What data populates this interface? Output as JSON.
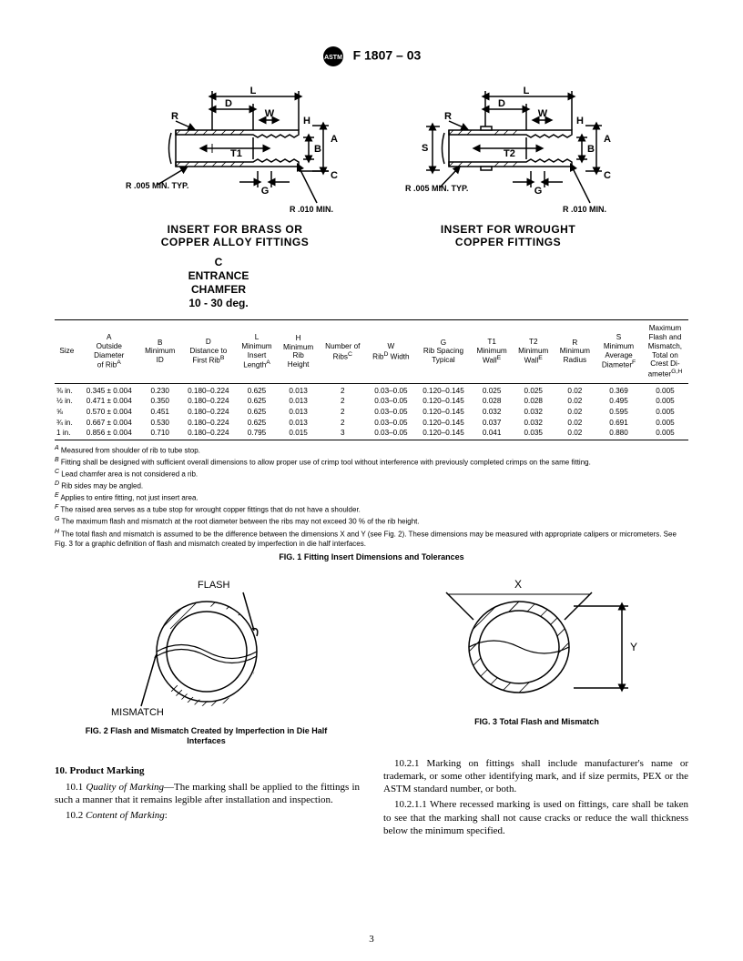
{
  "header": {
    "standard": "F 1807 – 03"
  },
  "diagrams": {
    "left": {
      "caption_l1": "INSERT FOR BRASS OR",
      "caption_l2": "COPPER ALLOY FITTINGS",
      "labels": {
        "L": "L",
        "D": "D",
        "W": "W",
        "R": "R",
        "H": "H",
        "A": "A",
        "B": "B",
        "C": "C",
        "T": "T1",
        "G": "G"
      },
      "note_r": "R .005 MIN. TYP.",
      "note_rmin": "R .010 MIN."
    },
    "right": {
      "caption_l1": "INSERT FOR WROUGHT",
      "caption_l2": "COPPER FITTINGS",
      "labels": {
        "L": "L",
        "D": "D",
        "W": "W",
        "R": "R",
        "H": "H",
        "A": "A",
        "B": "B",
        "C": "C",
        "T": "T2",
        "G": "G",
        "S": "S"
      },
      "note_r": "R .005 MIN. TYP.",
      "note_rmin": "R .010 MIN."
    },
    "chamfer": {
      "c": "C",
      "l1": "ENTRANCE",
      "l2": "CHAMFER",
      "l3": "10 - 30 deg."
    }
  },
  "table": {
    "columns": [
      "Size",
      "A\nOutside\nDiameter\nof Rib<sup>A</sup>",
      "B\nMinimum\nID",
      "D\nDistance to\nFirst Rib<sup>B</sup>",
      "L\nMinimum\nInsert\nLength<sup>A</sup>",
      "H\nMinimum\nRib\nHeight",
      "Number of\nRibs<sup>C</sup>",
      "W\nRib<sup>D</sup> Width",
      "G\nRib Spacing\nTypical",
      "T1\nMinimum\nWall<sup>E</sup>",
      "T2\nMinimum\nWall<sup>E</sup>",
      "R\nMinimum\nRadius",
      "S\nMinimum\nAverage\nDiameter<sup>F</sup>",
      "Maximum\nFlash and\nMismatch,\nTotal on\nCrest Di-\nameter<sup>G,H</sup>"
    ],
    "rows": [
      [
        "⅜ in.",
        "0.345 ± 0.004",
        "0.230",
        "0.180–0.224",
        "0.625",
        "0.013",
        "2",
        "0.03–0.05",
        "0.120–0.145",
        "0.025",
        "0.025",
        "0.02",
        "0.369",
        "0.005"
      ],
      [
        "½ in.",
        "0.471 ± 0.004",
        "0.350",
        "0.180–0.224",
        "0.625",
        "0.013",
        "2",
        "0.03–0.05",
        "0.120–0.145",
        "0.028",
        "0.028",
        "0.02",
        "0.495",
        "0.005"
      ],
      [
        "⅝",
        "0.570 ± 0.004",
        "0.451",
        "0.180–0.224",
        "0.625",
        "0.013",
        "2",
        "0.03–0.05",
        "0.120–0.145",
        "0.032",
        "0.032",
        "0.02",
        "0.595",
        "0.005"
      ],
      [
        "¾ in.",
        "0.667 ± 0.004",
        "0.530",
        "0.180–0.224",
        "0.625",
        "0.013",
        "2",
        "0.03–0.05",
        "0.120–0.145",
        "0.037",
        "0.032",
        "0.02",
        "0.691",
        "0.005"
      ],
      [
        "1 in.",
        "0.856 ± 0.004",
        "0.710",
        "0.180–0.224",
        "0.795",
        "0.015",
        "3",
        "0.03–0.05",
        "0.120–0.145",
        "0.041",
        "0.035",
        "0.02",
        "0.880",
        "0.005"
      ]
    ]
  },
  "notes": [
    "<sup><i>A</i></sup> Measured from shoulder of rib to tube stop.",
    "<sup><i>B</i></sup> Fitting shall be designed with sufficient overall dimensions to allow proper use of crimp tool without interference with previously completed crimps on the same fitting.",
    "<sup><i>C</i></sup> Lead chamfer area is not considered a rib.",
    "<sup><i>D</i></sup> Rib sides may be angled.",
    "<sup><i>E</i></sup> Applies to entire fitting, not just insert area.",
    "<sup><i>F</i></sup> The raised area serves as a tube stop for wrought copper fittings that do not have a shoulder.",
    "<sup><i>G</i></sup> The maximum flash and mismatch at the root diameter between the ribs may not exceed 30 % of the rib height.",
    "<sup><i>H</i></sup> The total flash and mismatch is assumed to be the difference between the dimensions X and Y (see Fig. 2). These dimensions may be measured with appropriate calipers or micrometers. See Fig. 3 for a graphic definition of flash and mismatch created by imperfection in die half interfaces."
  ],
  "fig1_title": "FIG. 1 Fitting Insert Dimensions and Tolerances",
  "fig2": {
    "caption_l1": "FIG. 2 Flash and Mismatch Created by Imperfection in Die Half",
    "caption_l2": "Interfaces",
    "flash": "FLASH",
    "mismatch": "MISMATCH"
  },
  "fig3": {
    "caption": "FIG. 3 Total Flash and Mismatch",
    "x": "X",
    "y": "Y"
  },
  "body": {
    "sec10": "10. Product Marking",
    "p101": "10.1 <i>Quality of Marking</i>—The marking shall be applied to the fittings in such a manner that it remains legible after installation and inspection.",
    "p102": "10.2 <i>Content of Marking</i>:",
    "p1021": "10.2.1 Marking on fittings shall include manufacturer's name or trademark, or some other identifying mark, and if size permits, PEX or the ASTM standard number, or both.",
    "p10211": "10.2.1.1 Where recessed marking is used on fittings, care shall be taken to see that the marking shall not cause cracks or reduce the wall thickness below the minimum specified."
  },
  "page": "3"
}
